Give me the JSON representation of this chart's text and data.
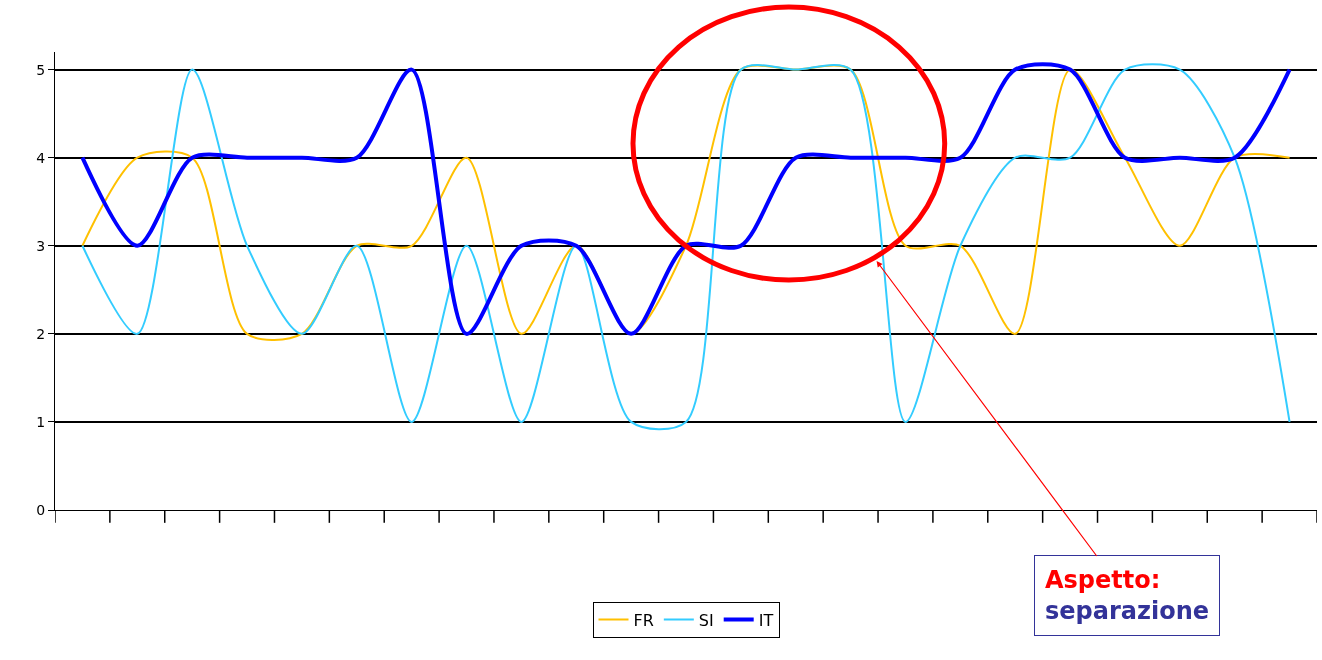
{
  "chart_data": {
    "type": "line",
    "categories": [
      null,
      null,
      null,
      null,
      null,
      null,
      null,
      null,
      null,
      null,
      null,
      null,
      null,
      null,
      null,
      null,
      null,
      null,
      null,
      null,
      null,
      null,
      null
    ],
    "series": [
      {
        "name": "FR",
        "color": "#ffc000",
        "values": [
          3,
          4,
          4,
          2,
          2,
          3,
          3,
          4,
          2,
          3,
          2,
          3,
          5,
          5,
          5,
          3,
          3,
          2,
          5,
          4,
          3,
          4,
          4
        ]
      },
      {
        "name": "SI",
        "color": "#33ccff",
        "values": [
          3,
          2,
          5,
          3,
          2,
          3,
          1,
          3,
          1,
          3,
          1,
          1,
          5,
          5,
          5,
          1,
          3,
          4,
          4,
          5,
          5,
          4,
          1
        ]
      },
      {
        "name": "IT",
        "color": "#0000ff",
        "values": [
          4,
          3,
          4,
          4,
          4,
          4,
          5,
          2,
          3,
          3,
          2,
          3,
          3,
          4,
          4,
          4,
          4,
          5,
          5,
          4,
          4,
          4,
          5
        ]
      }
    ],
    "ylim": [
      0,
      5.2
    ],
    "yticks": [
      0,
      1,
      2,
      3,
      4,
      5
    ],
    "grid": "y",
    "legend": "bottom",
    "marker": "none",
    "line_style": "solid",
    "tick_labels": "y",
    "annotations": [
      "Aspetto: separazione"
    ]
  }
}
